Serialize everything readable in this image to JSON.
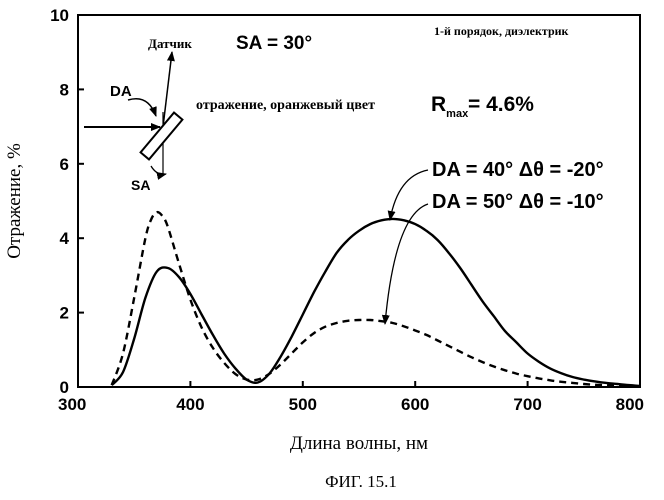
{
  "chart_data": {
    "type": "line",
    "xlabel": "Длина волны, нм",
    "ylabel": "Отражение, %",
    "xlim": [
      300,
      800
    ],
    "ylim": [
      0,
      10
    ],
    "x_ticks": [
      300,
      400,
      500,
      600,
      700,
      800
    ],
    "y_ticks": [
      0,
      2,
      4,
      6,
      8,
      10
    ],
    "grid": false,
    "series": [
      {
        "name": "DA = 40° Δθ = -20°",
        "style": "solid",
        "x": [
          330,
          340,
          350,
          360,
          370,
          380,
          390,
          400,
          410,
          420,
          430,
          440,
          450,
          460,
          470,
          480,
          490,
          500,
          510,
          520,
          530,
          540,
          550,
          560,
          570,
          580,
          590,
          600,
          610,
          620,
          630,
          640,
          650,
          660,
          670,
          680,
          690,
          700,
          710,
          720,
          730,
          740,
          750,
          760,
          770,
          780,
          790,
          800
        ],
        "values": [
          0.05,
          0.4,
          1.3,
          2.4,
          3.1,
          3.2,
          2.95,
          2.5,
          1.95,
          1.4,
          0.9,
          0.5,
          0.2,
          0.12,
          0.35,
          0.8,
          1.35,
          1.95,
          2.55,
          3.1,
          3.6,
          3.95,
          4.2,
          4.38,
          4.48,
          4.52,
          4.48,
          4.38,
          4.2,
          3.95,
          3.6,
          3.2,
          2.75,
          2.3,
          1.9,
          1.5,
          1.2,
          0.9,
          0.68,
          0.5,
          0.37,
          0.27,
          0.2,
          0.15,
          0.11,
          0.08,
          0.05,
          0.03
        ]
      },
      {
        "name": "DA = 50° Δθ = -10°",
        "style": "dashed",
        "x": [
          330,
          340,
          350,
          360,
          365,
          370,
          375,
          380,
          390,
          400,
          410,
          420,
          430,
          440,
          450,
          460,
          470,
          480,
          490,
          500,
          510,
          520,
          530,
          540,
          550,
          560,
          570,
          580,
          590,
          600,
          610,
          620,
          630,
          640,
          650,
          660,
          670,
          680,
          690,
          700,
          710,
          720,
          730,
          740,
          750,
          760,
          770,
          780,
          790,
          800
        ],
        "values": [
          0.05,
          0.9,
          2.4,
          4.0,
          4.5,
          4.7,
          4.6,
          4.3,
          3.3,
          2.35,
          1.6,
          1.05,
          0.65,
          0.35,
          0.2,
          0.2,
          0.35,
          0.6,
          0.9,
          1.2,
          1.45,
          1.62,
          1.72,
          1.78,
          1.8,
          1.8,
          1.77,
          1.72,
          1.63,
          1.52,
          1.4,
          1.25,
          1.1,
          0.95,
          0.8,
          0.67,
          0.55,
          0.45,
          0.36,
          0.29,
          0.23,
          0.18,
          0.14,
          0.11,
          0.08,
          0.06,
          0.05,
          0.04,
          0.03,
          0.02
        ]
      }
    ],
    "annotations": {
      "sa_main": "SA = 30°",
      "corner_note": "1-й порядок, диэлектрик",
      "detector_label": "Датчик",
      "da_label": "DA",
      "sa_label": "SA",
      "reflection_text": "отражение, оранжевый цвет",
      "rmax_r": "R",
      "rmax_sub": "max",
      "rmax_value": " = 4.6%",
      "label_solid": "DA = 40° Δθ = -20°",
      "label_dashed": "DA = 50° Δθ = -10°"
    }
  },
  "caption": "ФИГ. 15.1"
}
